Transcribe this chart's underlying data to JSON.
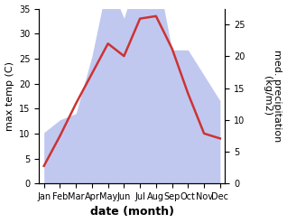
{
  "months": [
    "Jan",
    "Feb",
    "Mar",
    "Apr",
    "May",
    "Jun",
    "Jul",
    "Aug",
    "Sep",
    "Oct",
    "Nov",
    "Dec"
  ],
  "temperature": [
    3.5,
    9.5,
    16.0,
    22.0,
    28.0,
    25.5,
    33.0,
    33.5,
    27.0,
    18.0,
    10.0,
    9.0
  ],
  "precipitation": [
    8.0,
    10.0,
    11.0,
    20.0,
    32.0,
    26.0,
    34.0,
    34.0,
    21.0,
    21.0,
    17.0,
    13.0
  ],
  "temp_color": "#cc3333",
  "precip_color": "#c0c8f0",
  "temp_ylim": [
    0,
    35
  ],
  "precip_ylim": [
    0,
    27.5
  ],
  "temp_yticks": [
    0,
    5,
    10,
    15,
    20,
    25,
    30,
    35
  ],
  "precip_yticks": [
    0,
    5,
    10,
    15,
    20,
    25
  ],
  "xlabel": "date (month)",
  "ylabel_left": "max temp (C)",
  "ylabel_right": "med. precipitation\n(kg/m2)",
  "xlabel_fontsize": 9,
  "ylabel_fontsize": 8,
  "tick_fontsize": 7,
  "linewidth": 1.8,
  "background_color": "#ffffff"
}
